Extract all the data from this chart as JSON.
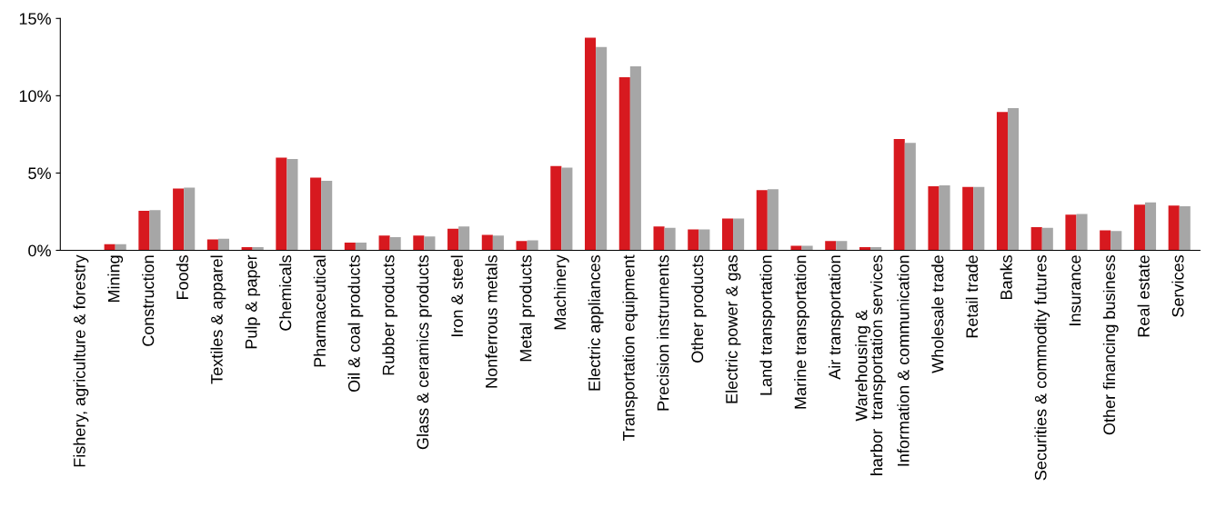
{
  "chart_data": {
    "type": "bar",
    "categories": [
      "Fishery, agriculture & forestry",
      "Mining",
      "Construction",
      "Foods",
      "Textiles & apparel",
      "Pulp & paper",
      "Chemicals",
      "Pharmaceutical",
      "Oil & coal products",
      "Rubber products",
      "Glass & ceramics products",
      "Iron & steel",
      "Nonferrous metals",
      "Metal products",
      "Machinery",
      "Electric appliances",
      "Transportation equipment",
      "Precision instruments",
      "Other products",
      "Electric power & gas",
      "Land transportation",
      "Marine transportation",
      "Air transportation",
      "Warehousing &\nharbor  transportation services",
      "Information & communication",
      "Wholesale trade",
      "Retail trade",
      "Banks",
      "Securities & commodity futures",
      "Insurance",
      "Other financing business",
      "Real estate",
      "Services"
    ],
    "series": [
      {
        "color": "#d7191f",
        "values": [
          0,
          0.4,
          2.55,
          4.0,
          0.7,
          0.2,
          6.0,
          4.7,
          0.5,
          0.95,
          0.95,
          1.4,
          1.0,
          0.6,
          5.45,
          13.75,
          11.2,
          1.55,
          1.35,
          2.05,
          3.9,
          0.3,
          0.6,
          0.2,
          7.2,
          4.15,
          4.1,
          8.95,
          1.5,
          2.3,
          1.3,
          2.95,
          2.9
        ]
      },
      {
        "color": "#a6a6a6",
        "values": [
          0,
          0.4,
          2.6,
          4.05,
          0.75,
          0.2,
          5.9,
          4.5,
          0.5,
          0.85,
          0.9,
          1.55,
          0.95,
          0.65,
          5.35,
          13.15,
          11.9,
          1.45,
          1.35,
          2.05,
          3.95,
          0.3,
          0.6,
          0.2,
          6.95,
          4.2,
          4.1,
          9.2,
          1.45,
          2.35,
          1.25,
          3.1,
          2.85
        ]
      }
    ],
    "ylim": [
      0,
      15
    ],
    "yticks": [
      {
        "value": 0,
        "label": "0%"
      },
      {
        "value": 5,
        "label": "5%"
      },
      {
        "value": 10,
        "label": "10%"
      },
      {
        "value": 15,
        "label": "15%"
      }
    ],
    "grid": false
  }
}
